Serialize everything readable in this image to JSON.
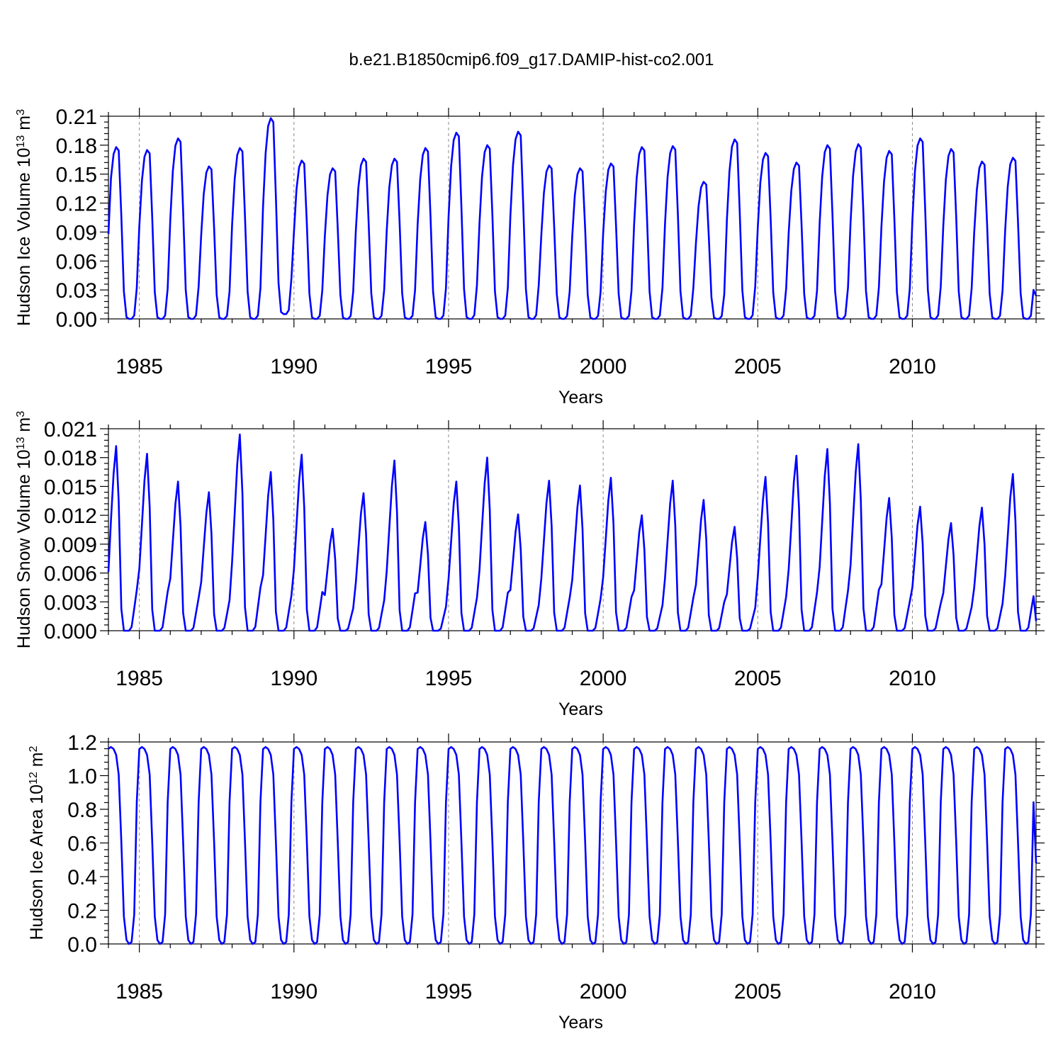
{
  "title": "b.e21.B1850cmip6.f09_g17.DAMIP-hist-co2.001",
  "colors": {
    "series": "#0000ff"
  },
  "chart_data": [
    {
      "type": "line",
      "id": "ice_volume",
      "ylabel": "Hudson Ice Volume 10",
      "ylabel_sup_1": "13",
      "ylabel_mid": " m",
      "ylabel_sup_2": "3",
      "xlabel": "Years",
      "xlim": [
        1984.0,
        2014.0
      ],
      "ylim": [
        0.0,
        0.21
      ],
      "yticks": [
        0.0,
        0.03,
        0.06,
        0.09,
        0.12,
        0.15,
        0.18,
        0.21
      ],
      "ytick_labels": [
        "0.00",
        "0.03",
        "0.06",
        "0.09",
        "0.12",
        "0.15",
        "0.18",
        "0.21"
      ],
      "xticks": [
        1985,
        1990,
        1995,
        2000,
        2005,
        2010
      ],
      "xtick_labels": [
        "1985",
        "1990",
        "1995",
        "2000",
        "2005",
        "2010"
      ],
      "series": [
        {
          "name": "Hudson Ice Volume",
          "start": 1984.0,
          "step_months": 1,
          "annual_peaks": [
            0.178,
            0.175,
            0.187,
            0.158,
            0.177,
            0.208,
            0.164,
            0.156,
            0.166,
            0.166,
            0.177,
            0.193,
            0.18,
            0.194,
            0.159,
            0.156,
            0.161,
            0.178,
            0.179,
            0.142,
            0.186,
            0.172,
            0.162,
            0.18,
            0.181,
            0.174,
            0.187,
            0.176,
            0.163,
            0.167
          ],
          "annual_mins": [
            0.0,
            0.0,
            0.0,
            0.0,
            0.0,
            0.005,
            0.0,
            0.0,
            0.0,
            0.0,
            0.0,
            0.0,
            0.0,
            0.0,
            0.0,
            0.0,
            0.0,
            0.0,
            0.0,
            0.0,
            0.0,
            0.0,
            0.0,
            0.0,
            0.0,
            0.0,
            0.0,
            0.0,
            0.0,
            0.0
          ],
          "first_value": 0.088,
          "last_value": 0.024
        }
      ]
    },
    {
      "type": "line",
      "id": "snow_volume",
      "ylabel": "Hudson Snow Volume 10",
      "ylabel_sup_1": "13",
      "ylabel_mid": " m",
      "ylabel_sup_2": "3",
      "xlabel": "Years",
      "xlim": [
        1984.0,
        2014.0
      ],
      "ylim": [
        0.0,
        0.021
      ],
      "yticks": [
        0.0,
        0.003,
        0.006,
        0.009,
        0.012,
        0.015,
        0.018,
        0.021
      ],
      "ytick_labels": [
        "0.000",
        "0.003",
        "0.006",
        "0.009",
        "0.012",
        "0.015",
        "0.018",
        "0.021"
      ],
      "xticks": [
        1985,
        1990,
        1995,
        2000,
        2005,
        2010
      ],
      "xtick_labels": [
        "1985",
        "1990",
        "1995",
        "2000",
        "2005",
        "2010"
      ],
      "series": [
        {
          "name": "Hudson Snow Volume",
          "start": 1984.0,
          "step_months": 1,
          "annual_peaks": [
            0.0192,
            0.0184,
            0.0155,
            0.0144,
            0.0204,
            0.0165,
            0.0183,
            0.0106,
            0.0143,
            0.0177,
            0.0113,
            0.0155,
            0.018,
            0.0121,
            0.0156,
            0.0151,
            0.0159,
            0.012,
            0.0156,
            0.0136,
            0.0108,
            0.016,
            0.0182,
            0.0189,
            0.0194,
            0.0138,
            0.0129,
            0.0112,
            0.0128,
            0.0163
          ],
          "first_value": 0.0061,
          "last_value": 0.001
        }
      ]
    },
    {
      "type": "line",
      "id": "ice_area",
      "ylabel": "Hudson Ice Area 10",
      "ylabel_sup_1": "12",
      "ylabel_mid": " m",
      "ylabel_sup_2": "2",
      "xlabel": "Years",
      "xlim": [
        1984.0,
        2014.0
      ],
      "ylim": [
        0.0,
        1.2
      ],
      "yticks": [
        0.0,
        0.2,
        0.4,
        0.6,
        0.8,
        1.0,
        1.2
      ],
      "ytick_labels": [
        "0.0",
        "0.2",
        "0.4",
        "0.6",
        "0.8",
        "1.0",
        "1.2"
      ],
      "xticks": [
        1985,
        1990,
        1995,
        2000,
        2005,
        2010
      ],
      "xtick_labels": [
        "1985",
        "1990",
        "1995",
        "2000",
        "2005",
        "2010"
      ],
      "series": [
        {
          "name": "Hudson Ice Area",
          "start": 1984.0,
          "step_months": 1,
          "annual_max": 1.17,
          "annual_min": 0.0,
          "first_value": 1.16,
          "last_value": 0.48
        }
      ]
    }
  ]
}
